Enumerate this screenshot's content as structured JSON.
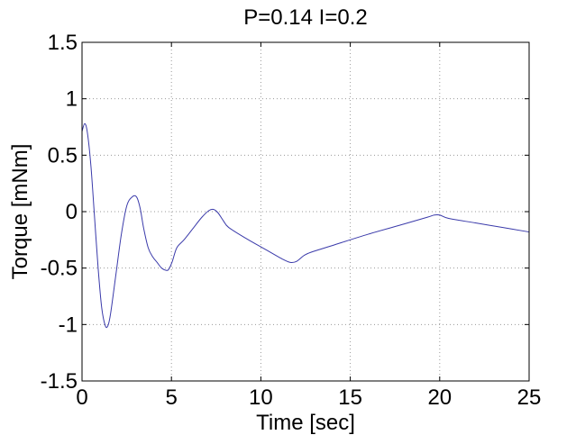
{
  "chart_data": {
    "type": "line",
    "title": "P=0.14 I=0.2",
    "xlabel": "Time [sec]",
    "ylabel": "Torque [mNm]",
    "xlim": [
      0,
      25
    ],
    "ylim": [
      -1.5,
      1.5
    ],
    "xticks": [
      0,
      5,
      10,
      15,
      20,
      25
    ],
    "xtick_labels": [
      "0",
      "5",
      "10",
      "15",
      "20",
      "25"
    ],
    "yticks": [
      -1.5,
      -1,
      -0.5,
      0,
      0.5,
      1,
      1.5
    ],
    "ytick_labels": [
      "-1.5",
      "-1",
      "-0.5",
      "0",
      "0.5",
      "1",
      "1.5"
    ],
    "grid": true,
    "line_color": "#3a3aaa",
    "series": [
      {
        "x": [
          0.0,
          0.15,
          0.3,
          0.5,
          0.7,
          0.9,
          1.1,
          1.3,
          1.45,
          1.6,
          1.9,
          2.2,
          2.5,
          2.8,
          3.05,
          3.25,
          3.45,
          3.7,
          3.95,
          4.2,
          4.45,
          4.7,
          4.85,
          5.05,
          5.3,
          5.7,
          6.2,
          6.7,
          7.1,
          7.35,
          7.6,
          7.9,
          8.2,
          9.2,
          10.2,
          11.2,
          11.65,
          12.0,
          12.4,
          12.8,
          14.0,
          16.0,
          18.0,
          19.3,
          19.7,
          20.0,
          20.5,
          22.0,
          23.5,
          25.0
        ],
        "y": [
          0.71,
          0.78,
          0.7,
          0.4,
          -0.05,
          -0.5,
          -0.85,
          -1.01,
          -1.01,
          -0.9,
          -0.55,
          -0.2,
          0.05,
          0.13,
          0.13,
          0.03,
          -0.15,
          -0.32,
          -0.4,
          -0.45,
          -0.5,
          -0.52,
          -0.51,
          -0.44,
          -0.32,
          -0.25,
          -0.15,
          -0.05,
          0.01,
          0.02,
          -0.01,
          -0.08,
          -0.14,
          -0.24,
          -0.33,
          -0.42,
          -0.45,
          -0.44,
          -0.39,
          -0.36,
          -0.3,
          -0.2,
          -0.11,
          -0.05,
          -0.03,
          -0.03,
          -0.06,
          -0.1,
          -0.14,
          -0.18
        ]
      }
    ]
  }
}
